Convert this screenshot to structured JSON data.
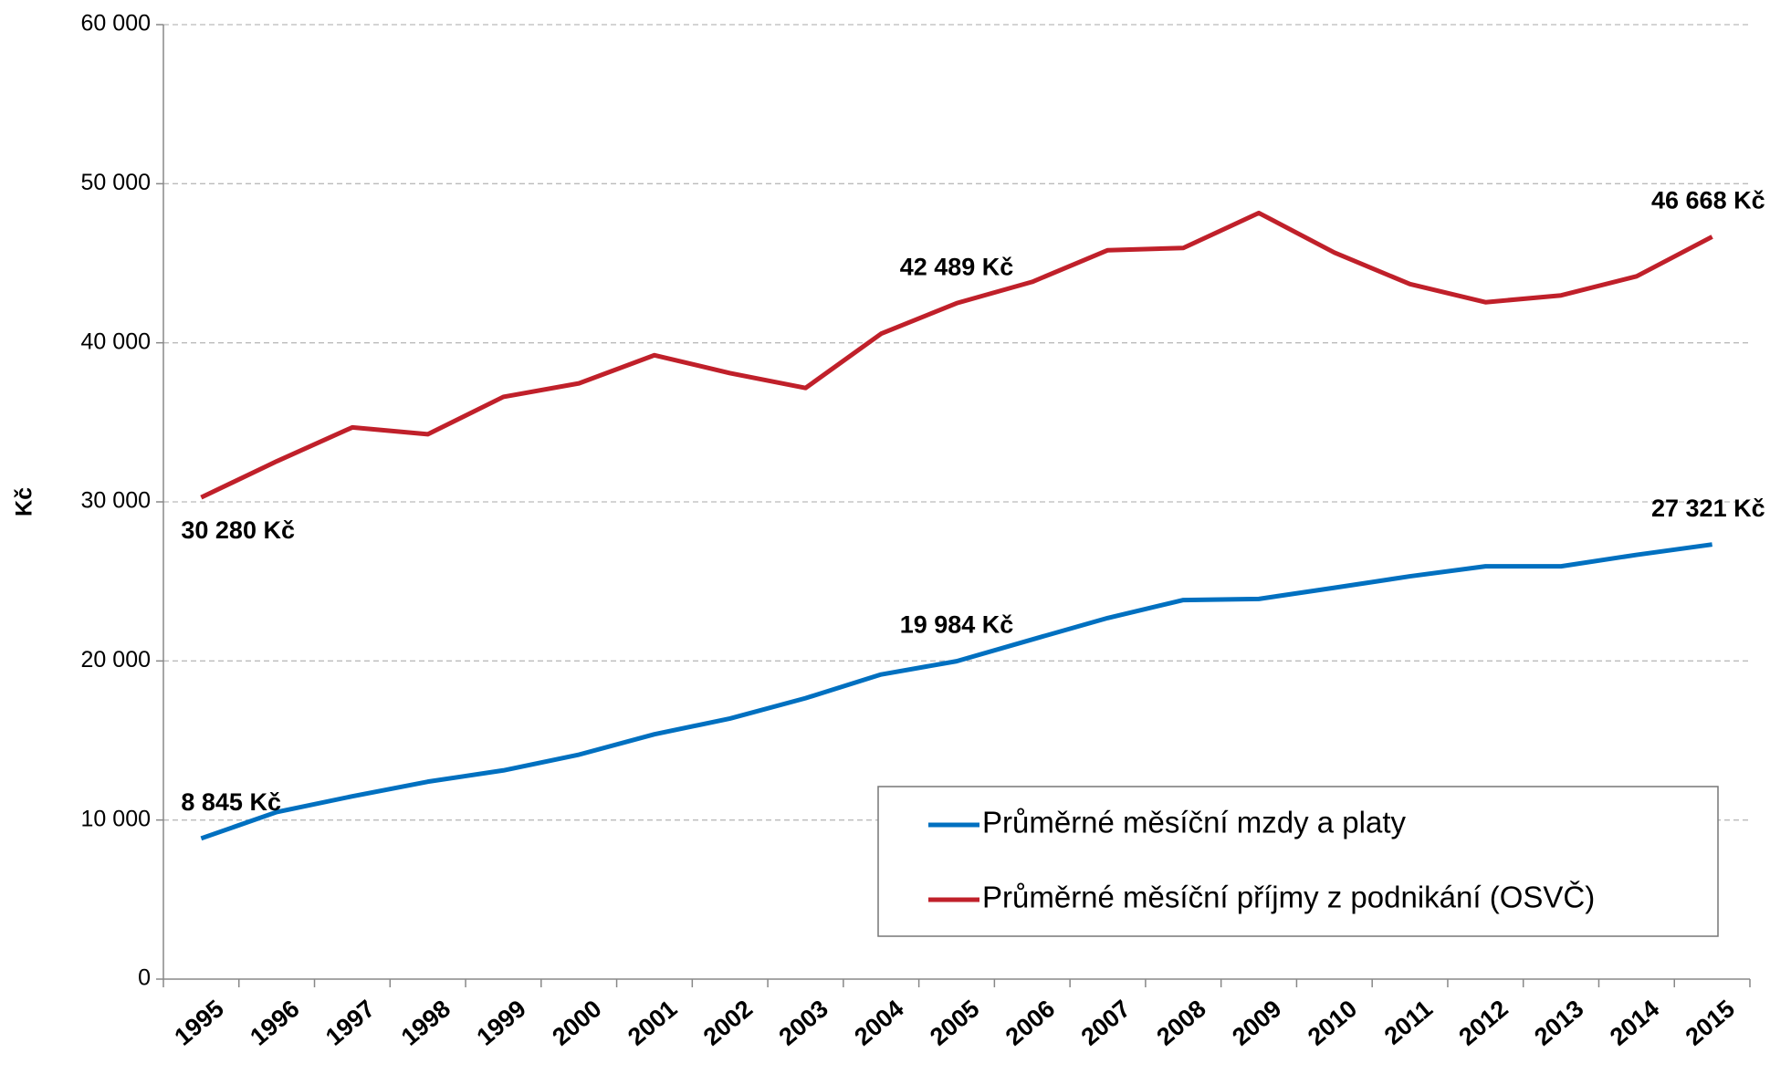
{
  "chart_data": {
    "type": "line",
    "y_label": "Kč",
    "categories": [
      "1995",
      "1996",
      "1997",
      "1998",
      "1999",
      "2000",
      "2001",
      "2002",
      "2003",
      "2004",
      "2005",
      "2006",
      "2007",
      "2008",
      "2009",
      "2010",
      "2011",
      "2012",
      "2013",
      "2014",
      "2015"
    ],
    "series": [
      {
        "name": "Průměrné měsíční mzdy a platy",
        "color": "#0070c0",
        "values": [
          8845,
          10500,
          11490,
          12410,
          13120,
          14110,
          15390,
          16380,
          17660,
          19150,
          19984,
          21350,
          22700,
          23830,
          23900,
          24600,
          25320,
          25950,
          25950,
          26670,
          27321
        ],
        "value_labels": [
          "8 845 Kč",
          null,
          null,
          null,
          null,
          null,
          null,
          null,
          null,
          null,
          "19 984 Kč",
          null,
          null,
          null,
          null,
          null,
          null,
          null,
          null,
          null,
          "27 321 Kč"
        ]
      },
      {
        "name": "Průměrné měsíční příjmy z podnikání (OSVČ)",
        "color": "#c0202a",
        "values": [
          30280,
          32550,
          34680,
          34250,
          36600,
          37450,
          39220,
          38090,
          37160,
          40570,
          42489,
          43830,
          45820,
          45960,
          48160,
          45670,
          43690,
          42550,
          42980,
          44180,
          46668
        ],
        "value_labels": [
          "30 280 Kč",
          null,
          null,
          null,
          null,
          null,
          null,
          null,
          null,
          null,
          "42 489 Kč",
          null,
          null,
          null,
          null,
          null,
          null,
          null,
          null,
          null,
          "46 668 Kč"
        ]
      }
    ],
    "ylim": [
      0,
      60000
    ],
    "yticks": [
      0,
      {
        "value": 10000,
        "label": "10 000"
      },
      {
        "value": 20000,
        "label": "20 000"
      },
      {
        "value": 30000,
        "label": "30 000"
      },
      {
        "value": 40000,
        "label": "40 000"
      },
      {
        "value": 50000,
        "label": "50 000"
      },
      {
        "value": 60000,
        "label": "60 000"
      }
    ],
    "grid": true,
    "legend": "lower right"
  }
}
